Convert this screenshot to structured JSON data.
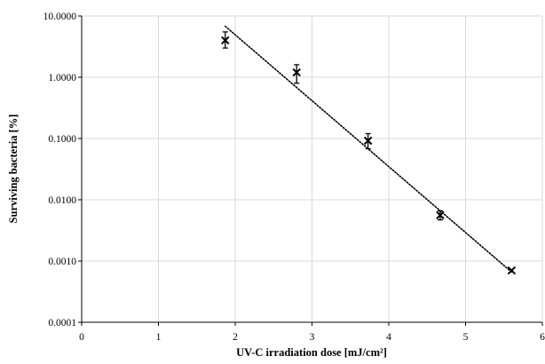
{
  "chart_data": {
    "type": "scatter",
    "title": "",
    "xlabel": "UV-C irradiation  dose [mJ/cm²]",
    "ylabel": "Surviving  bacteria [%]",
    "xlim": [
      0,
      6
    ],
    "ylim": [
      0.0001,
      10
    ],
    "yscale": "log",
    "grid": true,
    "legend": "none",
    "x_ticks": [
      0,
      1,
      2,
      3,
      4,
      5,
      6
    ],
    "x_tick_labels": [
      "0",
      "1",
      "2",
      "3",
      "4",
      "5",
      "6"
    ],
    "y_ticks": [
      0.0001,
      0.001,
      0.01,
      0.1,
      1,
      10
    ],
    "y_tick_labels": [
      "0.0001",
      "0.0010",
      "0.0100",
      "0.1000",
      "1.0000",
      "10.0000"
    ],
    "points": [
      {
        "x": 1.87,
        "y": 4.0,
        "err_low": 3.0,
        "err_high": 5.5
      },
      {
        "x": 2.8,
        "y": 1.2,
        "err_low": 0.8,
        "err_high": 1.6
      },
      {
        "x": 3.73,
        "y": 0.092,
        "err_low": 0.068,
        "err_high": 0.12
      },
      {
        "x": 4.67,
        "y": 0.0056,
        "err_low": 0.0047,
        "err_high": 0.0066
      },
      {
        "x": 5.6,
        "y": 0.0007
      }
    ],
    "trendline": {
      "style": "dotted",
      "from": {
        "x": 1.87,
        "y": 6.8
      },
      "to": {
        "x": 5.6,
        "y": 0.00066
      }
    },
    "colors": {
      "marker": "#000000",
      "grid": "#d9d9d9",
      "axis": "#000000",
      "trendline": "#000000"
    }
  }
}
